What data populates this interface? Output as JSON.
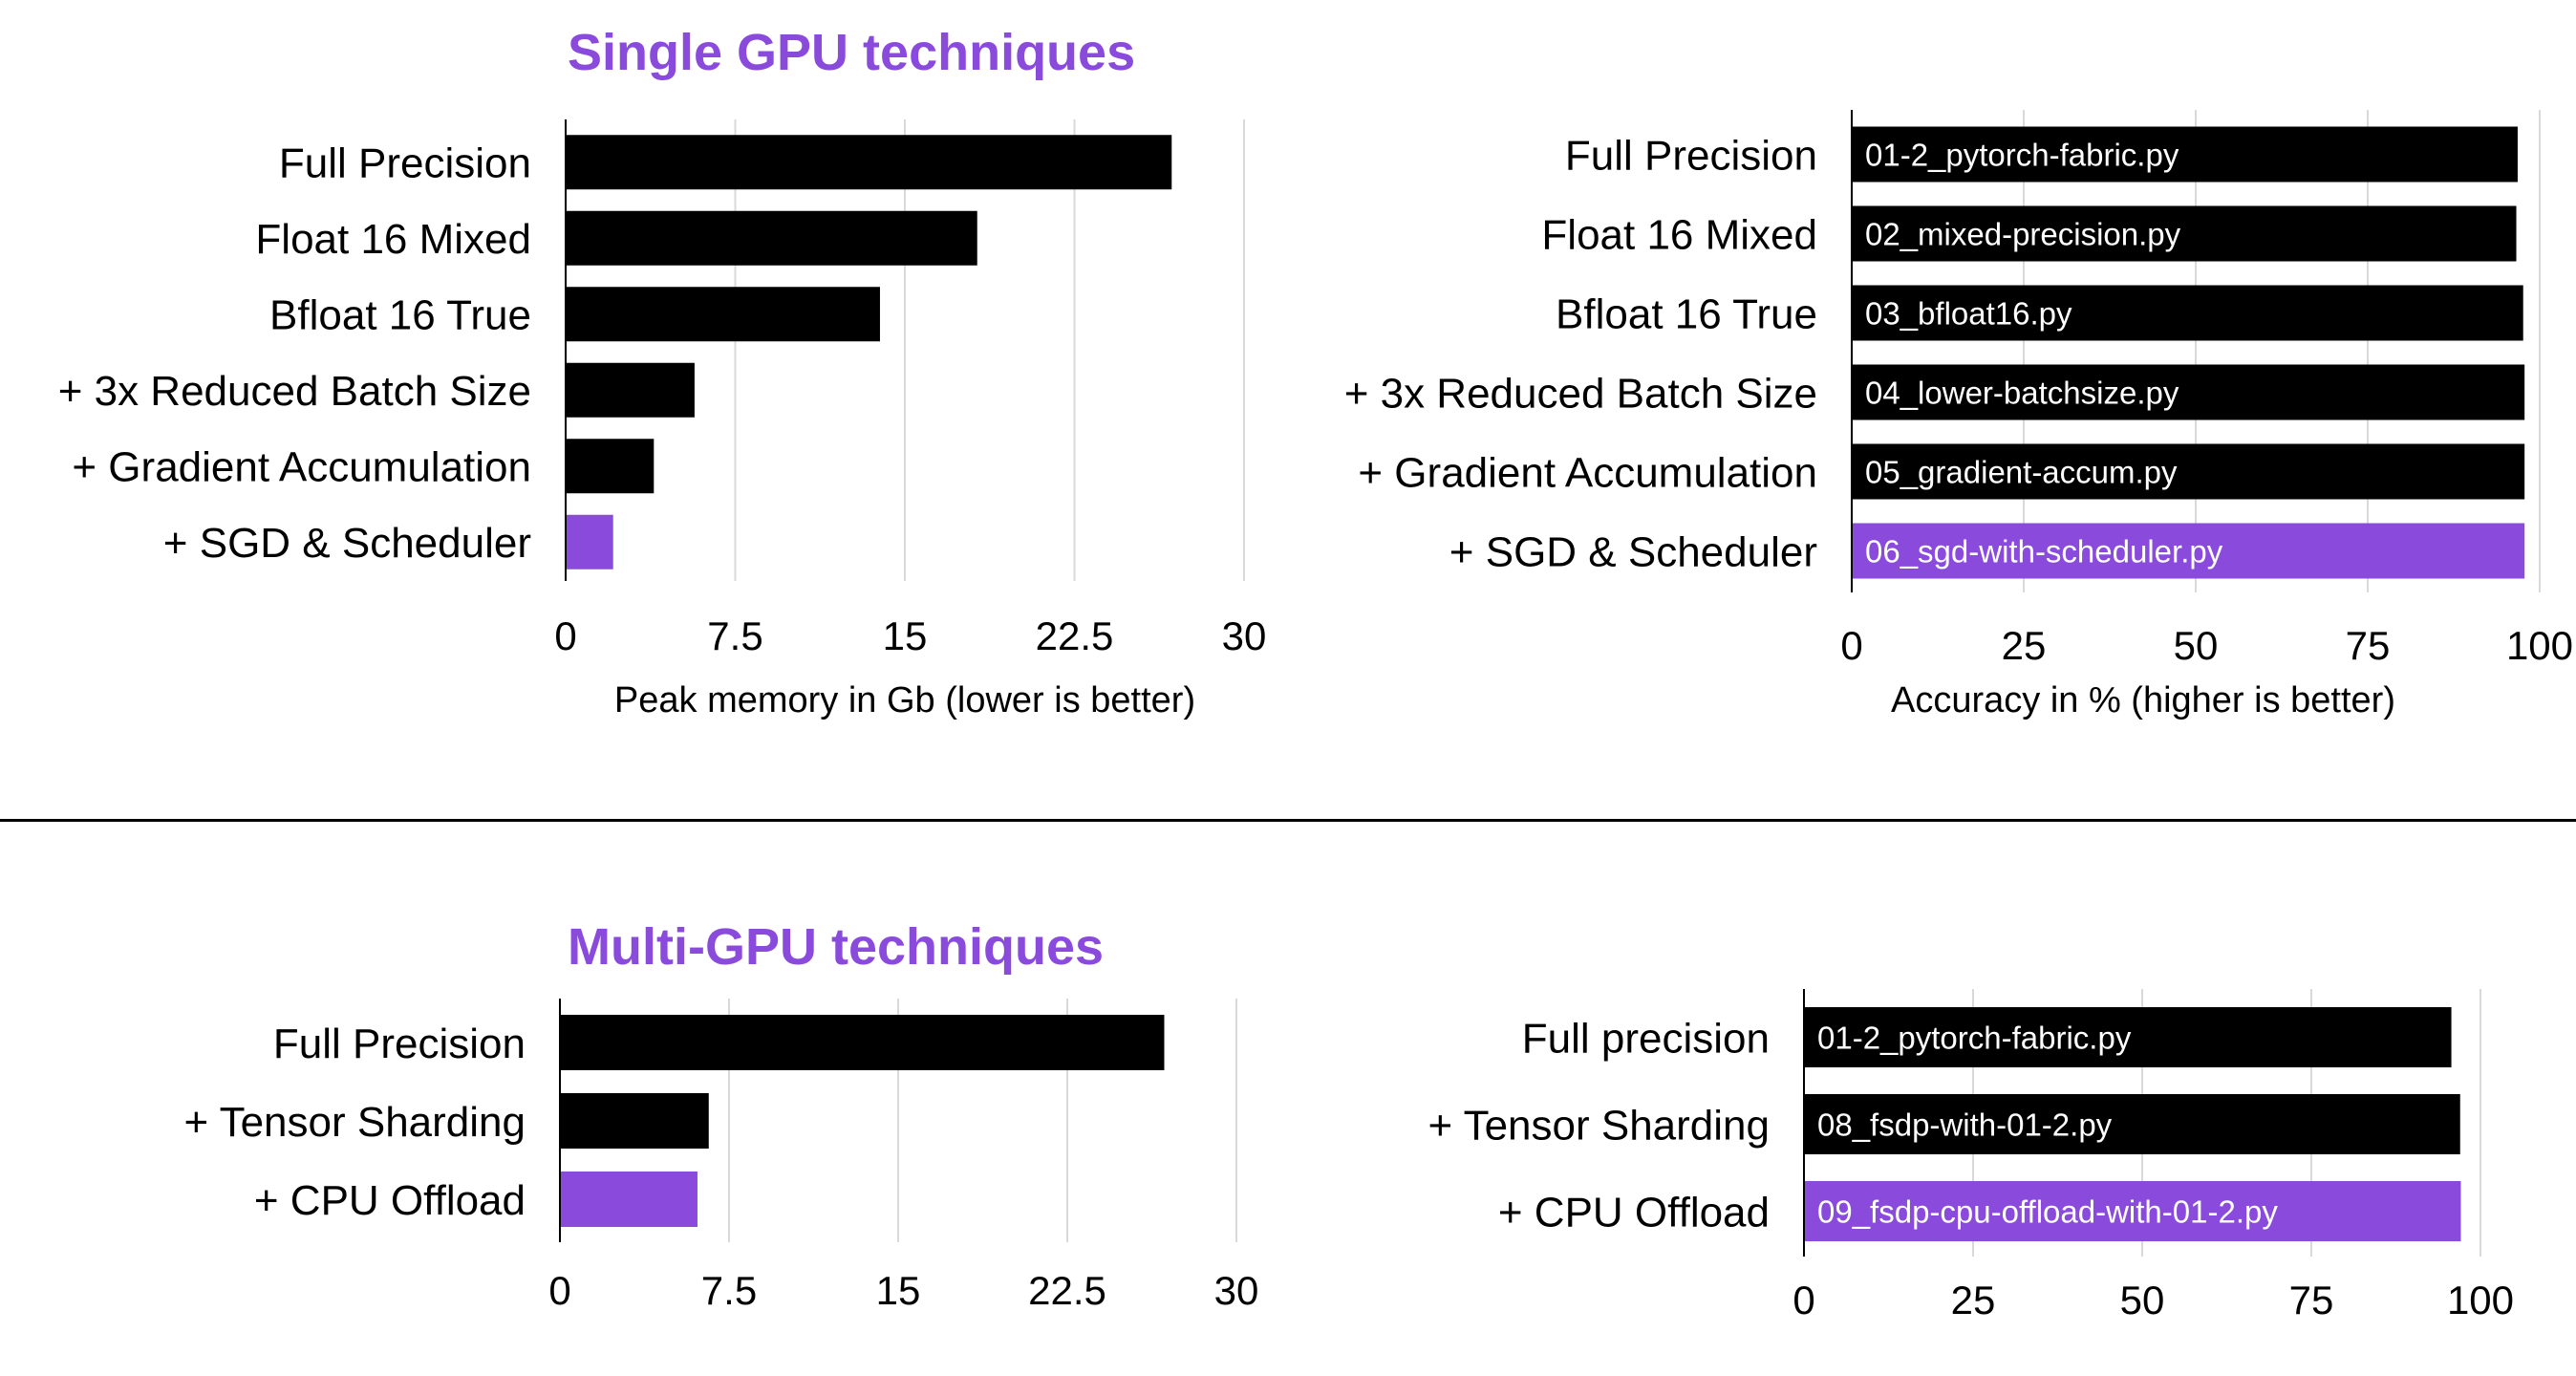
{
  "sections": {
    "single_title": "Single GPU techniques",
    "multi_title": "Multi-GPU techniques"
  },
  "colors": {
    "bar": "#000000",
    "highlight": "#8a4bdc",
    "grid": "#d9d9d9",
    "title": "#8a4bdc"
  },
  "chart_data": [
    {
      "id": "single-memory",
      "type": "bar",
      "orientation": "horizontal",
      "categories": [
        "Full Precision",
        "Float 16 Mixed",
        "Bfloat 16 True",
        "+ 3x Reduced Batch Size",
        "+ Gradient Accumulation",
        "+ SGD & Scheduler"
      ],
      "values": [
        26.8,
        18.2,
        13.9,
        5.7,
        3.9,
        2.1
      ],
      "highlight_index": 5,
      "bar_labels": [],
      "xlabel": "Peak memory in Gb (lower is better)",
      "xlim": [
        0,
        30
      ],
      "ticks": [
        0,
        7.5,
        15,
        22.5,
        30
      ],
      "tick_labels": [
        "0",
        "7.5",
        "15",
        "22.5",
        "30"
      ],
      "grid": true
    },
    {
      "id": "single-accuracy",
      "type": "bar",
      "orientation": "horizontal",
      "categories": [
        "Full Precision",
        "Float 16 Mixed",
        "Bfloat 16 True",
        "+ 3x Reduced Batch Size",
        "+ Gradient Accumulation",
        "+ SGD & Scheduler"
      ],
      "values": [
        96.8,
        96.6,
        97.6,
        97.8,
        97.8,
        97.8
      ],
      "highlight_index": 5,
      "bar_labels": [
        "01-2_pytorch-fabric.py",
        "02_mixed-precision.py",
        "03_bfloat16.py",
        "04_lower-batchsize.py",
        "05_gradient-accum.py",
        "06_sgd-with-scheduler.py"
      ],
      "xlabel": "Accuracy in % (higher is better)",
      "xlim": [
        0,
        100
      ],
      "ticks": [
        0,
        25,
        50,
        75,
        100
      ],
      "tick_labels": [
        "0",
        "25",
        "50",
        "75",
        "100"
      ],
      "grid": true
    },
    {
      "id": "multi-memory",
      "type": "bar",
      "orientation": "horizontal",
      "categories": [
        "Full Precision",
        "+ Tensor Sharding",
        "+ CPU Offload"
      ],
      "values": [
        26.8,
        6.6,
        6.1
      ],
      "highlight_index": 2,
      "bar_labels": [],
      "xlabel": "",
      "xlim": [
        0,
        30
      ],
      "ticks": [
        0,
        7.5,
        15,
        22.5,
        30
      ],
      "tick_labels": [
        "0",
        "7.5",
        "15",
        "22.5",
        "30"
      ],
      "grid": true
    },
    {
      "id": "multi-accuracy",
      "type": "bar",
      "orientation": "horizontal",
      "categories": [
        "Full precision",
        "+ Tensor Sharding",
        "+ CPU Offload"
      ],
      "values": [
        95.7,
        97.0,
        97.1
      ],
      "highlight_index": 2,
      "bar_labels": [
        "01-2_pytorch-fabric.py",
        "08_fsdp-with-01-2.py",
        "09_fsdp-cpu-offload-with-01-2.py"
      ],
      "xlabel": "",
      "xlim": [
        0,
        100
      ],
      "ticks": [
        0,
        25,
        50,
        75,
        100
      ],
      "tick_labels": [
        "0",
        "25",
        "50",
        "75",
        "100"
      ],
      "grid": true
    }
  ]
}
